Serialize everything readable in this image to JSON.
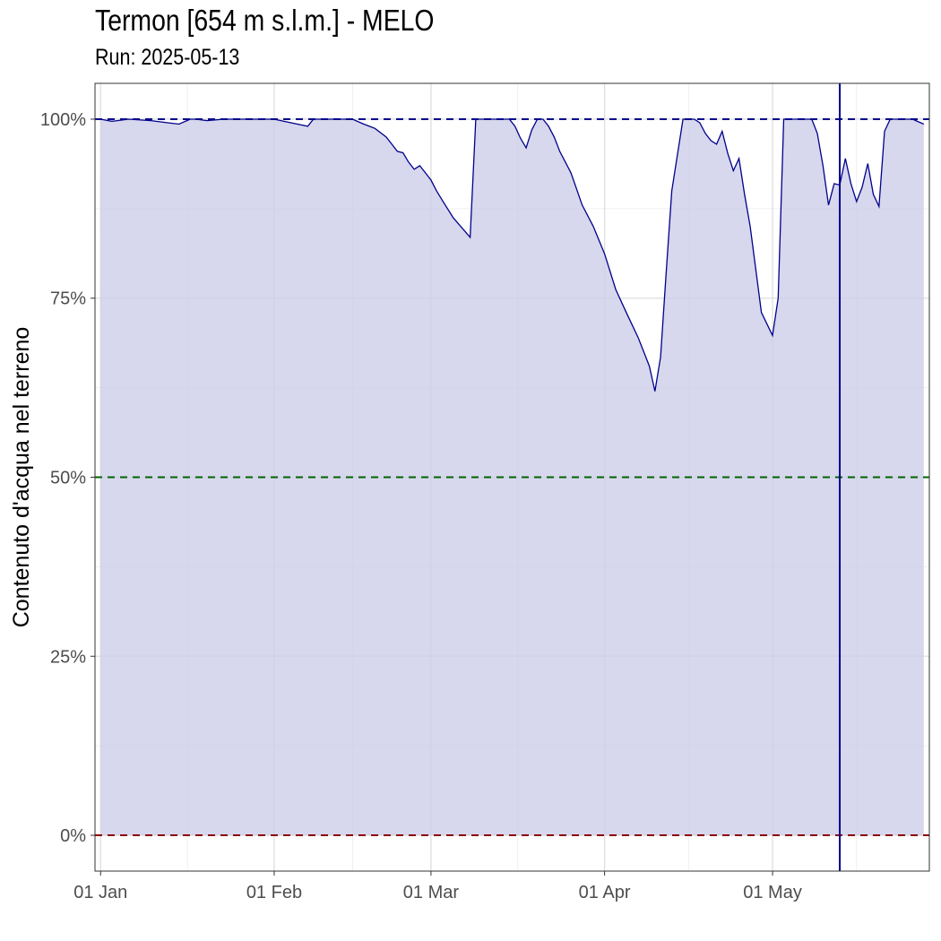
{
  "chart_data": {
    "type": "area",
    "title": "Termon [654 m s.l.m.] - MELO",
    "subtitle": "Run: 2025-05-13",
    "xlabel": "",
    "ylabel": "Contenuto d'acqua nel terreno",
    "x_type": "date",
    "x_range": [
      "2024-12-31",
      "2025-05-29"
    ],
    "y_range": [
      -0.05,
      1.05
    ],
    "y_ticks": [
      0,
      0.25,
      0.5,
      0.75,
      1.0
    ],
    "y_tick_labels": [
      "0%",
      "25%",
      "50%",
      "75%",
      "100%"
    ],
    "x_ticks": [
      "2025-01-01",
      "2025-02-01",
      "2025-03-01",
      "2025-04-01",
      "2025-05-01"
    ],
    "x_tick_labels": [
      "01 Jan",
      "01 Feb",
      "01 Mar",
      "01 Apr",
      "01 May"
    ],
    "grid": true,
    "reference_lines": [
      {
        "y": 1.0,
        "style": "dashed",
        "color": "#00008B"
      },
      {
        "y": 0.5,
        "style": "dashed",
        "color": "#006400"
      },
      {
        "y": 0.0,
        "style": "dashed",
        "color": "#8B0000"
      }
    ],
    "run_date_line": "2025-05-13",
    "colors": {
      "fill": "#ccccE8",
      "line": "#00008B"
    },
    "series": [
      {
        "x": [
          "2025-01-01",
          "2025-01-03",
          "2025-01-06",
          "2025-01-10",
          "2025-01-13",
          "2025-01-15",
          "2025-01-17",
          "2025-01-18",
          "2025-01-20",
          "2025-01-23",
          "2025-01-27",
          "2025-02-01",
          "2025-02-04",
          "2025-02-07",
          "2025-02-08",
          "2025-02-10",
          "2025-02-15",
          "2025-02-17",
          "2025-02-18",
          "2025-02-19",
          "2025-02-21",
          "2025-02-22",
          "2025-02-23",
          "2025-02-24",
          "2025-02-25",
          "2025-02-26",
          "2025-02-27",
          "2025-02-28",
          "2025-03-01",
          "2025-03-02",
          "2025-03-03",
          "2025-03-05",
          "2025-03-08",
          "2025-03-09",
          "2025-03-12",
          "2025-03-15",
          "2025-03-16",
          "2025-03-17",
          "2025-03-18",
          "2025-03-19",
          "2025-03-20",
          "2025-03-21",
          "2025-03-22",
          "2025-03-23",
          "2025-03-24",
          "2025-03-25",
          "2025-03-26",
          "2025-03-28",
          "2025-03-30",
          "2025-04-01",
          "2025-04-03",
          "2025-04-05",
          "2025-04-07",
          "2025-04-09",
          "2025-04-10",
          "2025-04-11",
          "2025-04-12",
          "2025-04-13",
          "2025-04-15",
          "2025-04-16",
          "2025-04-17",
          "2025-04-18",
          "2025-04-19",
          "2025-04-20",
          "2025-04-21",
          "2025-04-22",
          "2025-04-23",
          "2025-04-24",
          "2025-04-25",
          "2025-04-26",
          "2025-04-27",
          "2025-04-29",
          "2025-05-01",
          "2025-05-02",
          "2025-05-03",
          "2025-05-04",
          "2025-05-05",
          "2025-05-07",
          "2025-05-08",
          "2025-05-09",
          "2025-05-10",
          "2025-05-11",
          "2025-05-12",
          "2025-05-13",
          "2025-05-14",
          "2025-05-15",
          "2025-05-16",
          "2025-05-17",
          "2025-05-18",
          "2025-05-19",
          "2025-05-20",
          "2025-05-21",
          "2025-05-22",
          "2025-05-24",
          "2025-05-26",
          "2025-05-28"
        ],
        "y": [
          1.0,
          0.997,
          1.0,
          0.998,
          0.995,
          0.993,
          1.0,
          1.0,
          0.998,
          1.0,
          1.0,
          1.0,
          0.995,
          0.99,
          1.0,
          1.0,
          1.0,
          0.993,
          0.99,
          0.987,
          0.975,
          0.965,
          0.955,
          0.953,
          0.94,
          0.93,
          0.935,
          0.925,
          0.915,
          0.9,
          0.887,
          0.862,
          0.835,
          1.0,
          1.0,
          1.0,
          0.99,
          0.973,
          0.96,
          0.985,
          1.0,
          1.0,
          0.99,
          0.975,
          0.955,
          0.94,
          0.925,
          0.88,
          0.85,
          0.812,
          0.762,
          0.728,
          0.695,
          0.655,
          0.62,
          0.668,
          0.785,
          0.9,
          1.0,
          1.0,
          1.0,
          0.995,
          0.98,
          0.97,
          0.965,
          0.983,
          0.952,
          0.928,
          0.945,
          0.895,
          0.85,
          0.73,
          0.698,
          0.75,
          1.0,
          1.0,
          1.0,
          1.0,
          1.0,
          0.98,
          0.935,
          0.88,
          0.91,
          0.908,
          0.945,
          0.91,
          0.885,
          0.905,
          0.938,
          0.895,
          0.878,
          0.983,
          1.0,
          1.0,
          1.0,
          0.993
        ]
      }
    ]
  }
}
